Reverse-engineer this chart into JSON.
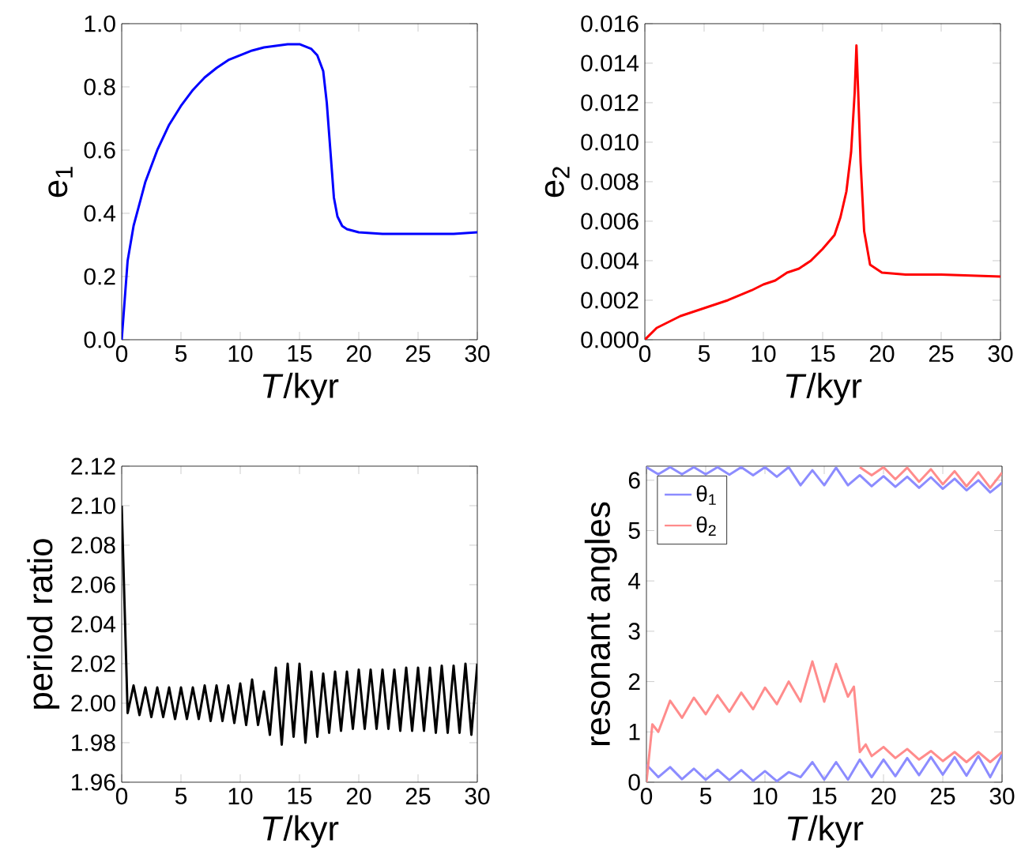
{
  "chart_data": [
    {
      "type": "line",
      "xlabel": "*T*/kyr",
      "ylabel": "e$_{1}$",
      "xlim": [
        0,
        30
      ],
      "ylim": [
        0,
        1
      ],
      "xticks": [
        0,
        5,
        10,
        15,
        20,
        25,
        30
      ],
      "yticks": [
        {
          "value": 0,
          "label": "0.0"
        },
        {
          "value": 0.2,
          "label": "0.2"
        },
        {
          "value": 0.4,
          "label": "0.4"
        },
        {
          "value": 0.6,
          "label": "0.6"
        },
        {
          "value": 0.8,
          "label": "0.8"
        },
        {
          "value": 1,
          "label": "1.0"
        }
      ],
      "grid": false,
      "legend": false,
      "series": [
        {
          "color": "#0000ff",
          "x": [
            0,
            0.2,
            0.5,
            1,
            2,
            3,
            4,
            5,
            6,
            7,
            8,
            9,
            10,
            11,
            12,
            13,
            14,
            15,
            16,
            16.5,
            17,
            17.3,
            17.6,
            17.9,
            18.2,
            18.6,
            19,
            20,
            22,
            25,
            28,
            30
          ],
          "values": [
            0,
            0.1,
            0.25,
            0.36,
            0.5,
            0.6,
            0.68,
            0.74,
            0.79,
            0.83,
            0.86,
            0.885,
            0.9,
            0.915,
            0.925,
            0.93,
            0.935,
            0.935,
            0.92,
            0.9,
            0.85,
            0.75,
            0.6,
            0.45,
            0.39,
            0.36,
            0.35,
            0.34,
            0.335,
            0.335,
            0.335,
            0.34
          ]
        }
      ]
    },
    {
      "type": "line",
      "xlabel": "*T*/kyr",
      "ylabel": "e$_{2}$",
      "xlim": [
        0,
        30
      ],
      "ylim": [
        0,
        0.016
      ],
      "xticks": [
        0,
        5,
        10,
        15,
        20,
        25,
        30
      ],
      "yticks": [
        {
          "value": 0,
          "label": "0.000"
        },
        {
          "value": 0.002,
          "label": "0.002"
        },
        {
          "value": 0.004,
          "label": "0.004"
        },
        {
          "value": 0.006,
          "label": "0.006"
        },
        {
          "value": 0.008,
          "label": "0.008"
        },
        {
          "value": 0.01,
          "label": "0.010"
        },
        {
          "value": 0.012,
          "label": "0.012"
        },
        {
          "value": 0.014,
          "label": "0.014"
        },
        {
          "value": 0.016,
          "label": "0.016"
        }
      ],
      "grid": false,
      "legend": false,
      "series": [
        {
          "color": "#ff0000",
          "x": [
            0,
            0.5,
            1,
            2,
            3,
            5,
            7,
            9,
            10,
            11,
            12,
            13,
            14,
            15,
            16,
            16.5,
            17,
            17.4,
            17.7,
            17.85,
            18,
            18.2,
            18.5,
            19,
            20,
            22,
            25,
            30
          ],
          "values": [
            0,
            0.0003,
            0.0006,
            0.0009,
            0.0012,
            0.0016,
            0.002,
            0.0025,
            0.0028,
            0.003,
            0.0034,
            0.0036,
            0.004,
            0.0046,
            0.0053,
            0.0062,
            0.0075,
            0.0095,
            0.0125,
            0.0149,
            0.0125,
            0.009,
            0.0055,
            0.0038,
            0.0034,
            0.0033,
            0.0033,
            0.0032
          ]
        }
      ]
    },
    {
      "type": "line",
      "xlabel": "*T*/kyr",
      "ylabel": "period ratio",
      "xlim": [
        0,
        30
      ],
      "ylim": [
        1.96,
        2.12
      ],
      "xticks": [
        0,
        5,
        10,
        15,
        20,
        25,
        30
      ],
      "yticks": [
        {
          "value": 1.96,
          "label": "1.96"
        },
        {
          "value": 1.98,
          "label": "1.98"
        },
        {
          "value": 2,
          "label": "2.00"
        },
        {
          "value": 2.02,
          "label": "2.02"
        },
        {
          "value": 2.04,
          "label": "2.04"
        },
        {
          "value": 2.06,
          "label": "2.06"
        },
        {
          "value": 2.08,
          "label": "2.08"
        },
        {
          "value": 2.1,
          "label": "2.10"
        },
        {
          "value": 2.12,
          "label": "2.12"
        }
      ],
      "grid": false,
      "legend": false,
      "series": [
        {
          "color": "#000000",
          "x": [
            0,
            0.5,
            1,
            1.5,
            2,
            2.5,
            3,
            3.5,
            4,
            4.5,
            5,
            5.5,
            6,
            6.5,
            7,
            7.5,
            8,
            8.5,
            9,
            9.5,
            10,
            10.5,
            11,
            11.5,
            12,
            12.5,
            13,
            13.5,
            14,
            14.5,
            15,
            15.5,
            16,
            16.5,
            17,
            17.5,
            18,
            18.5,
            19,
            19.5,
            20,
            20.5,
            21,
            21.5,
            22,
            22.5,
            23,
            23.5,
            24,
            24.5,
            25,
            25.5,
            26,
            26.5,
            27,
            27.5,
            28,
            28.5,
            29,
            29.5,
            30
          ],
          "values": [
            2.1,
            1.995,
            2.009,
            1.994,
            2.008,
            1.993,
            2.008,
            1.993,
            2.008,
            1.992,
            2.008,
            1.992,
            2.008,
            1.992,
            2.009,
            1.991,
            2.009,
            1.991,
            2.009,
            1.99,
            2.01,
            1.989,
            2.012,
            1.989,
            2.006,
            1.984,
            2.018,
            1.979,
            2.02,
            1.983,
            2.02,
            1.98,
            2.016,
            1.983,
            2.015,
            1.985,
            2.016,
            1.986,
            2.016,
            1.987,
            2.017,
            1.987,
            2.017,
            1.987,
            2.017,
            1.987,
            2.017,
            1.986,
            2.018,
            1.986,
            2.018,
            1.986,
            2.018,
            1.985,
            2.019,
            1.985,
            2.019,
            1.985,
            2.02,
            1.984,
            2.02
          ]
        }
      ]
    },
    {
      "type": "line",
      "xlabel": "*T*/kyr",
      "ylabel": "resonant angles",
      "xlim": [
        0,
        30
      ],
      "ylim": [
        0,
        6.28
      ],
      "xticks": [
        0,
        5,
        10,
        15,
        20,
        25,
        30
      ],
      "yticks": [
        0,
        1,
        2,
        3,
        4,
        5,
        6
      ],
      "grid": false,
      "legend": "top left",
      "series": [
        {
          "name": "θ$_{1}$",
          "color": "#8c8cff",
          "x": [
            0,
            1,
            2,
            3,
            4,
            5,
            6,
            7,
            8,
            9,
            10,
            11,
            12,
            13,
            14,
            15,
            16,
            17,
            18,
            19,
            20,
            21,
            22,
            23,
            24,
            25,
            26,
            27,
            28,
            29,
            30
          ],
          "values": [
            0.35,
            0.1,
            0.3,
            0.06,
            0.27,
            0.05,
            0.25,
            0.04,
            0.24,
            0.03,
            0.22,
            0.02,
            0.2,
            0.1,
            0.4,
            0.05,
            0.4,
            0.05,
            0.45,
            0.1,
            0.45,
            0.12,
            0.48,
            0.14,
            0.5,
            0.15,
            0.5,
            0.13,
            0.52,
            0.1,
            0.55
          ]
        },
        {
          "color": "#8c8cff",
          "x": [
            0,
            1,
            2,
            3,
            4,
            5,
            6,
            7,
            8,
            9,
            10,
            11,
            12,
            13,
            14,
            15,
            16,
            17,
            18,
            19,
            20,
            21,
            22,
            23,
            24,
            25,
            26,
            27,
            28,
            29,
            30
          ],
          "values": [
            6.26,
            6.12,
            6.26,
            6.12,
            6.26,
            6.12,
            6.26,
            6.11,
            6.26,
            6.1,
            6.26,
            6.07,
            6.26,
            5.9,
            6.2,
            5.9,
            6.25,
            5.9,
            6.1,
            5.88,
            6.08,
            5.87,
            6.07,
            5.85,
            6.06,
            5.83,
            6.03,
            5.8,
            6,
            5.76,
            5.95
          ]
        },
        {
          "name": "θ$_{2}$",
          "color": "#ff8c8c",
          "x": [
            0,
            0.5,
            1,
            2,
            3,
            4,
            5,
            6,
            7,
            8,
            9,
            10,
            11,
            12,
            13,
            14,
            15,
            16,
            17,
            17.5,
            18,
            18.5,
            19,
            20,
            21,
            22,
            23,
            24,
            25,
            26,
            27,
            28,
            29,
            30
          ],
          "values": [
            0,
            1.15,
            1,
            1.62,
            1.28,
            1.68,
            1.35,
            1.73,
            1.4,
            1.78,
            1.45,
            1.88,
            1.55,
            2,
            1.6,
            2.4,
            1.6,
            2.35,
            1.7,
            1.9,
            0.6,
            0.75,
            0.52,
            0.7,
            0.48,
            0.66,
            0.45,
            0.62,
            0.42,
            0.6,
            0.4,
            0.6,
            0.4,
            0.6
          ]
        },
        {
          "color": "#ff8c8c",
          "x": [
            18,
            19,
            20,
            21,
            22,
            23,
            24,
            25,
            26,
            27,
            28,
            29,
            30
          ],
          "values": [
            6.26,
            6.1,
            6.26,
            6.02,
            6.25,
            5.97,
            6.22,
            5.92,
            6.18,
            5.88,
            6.16,
            5.85,
            6.15
          ]
        }
      ]
    }
  ]
}
